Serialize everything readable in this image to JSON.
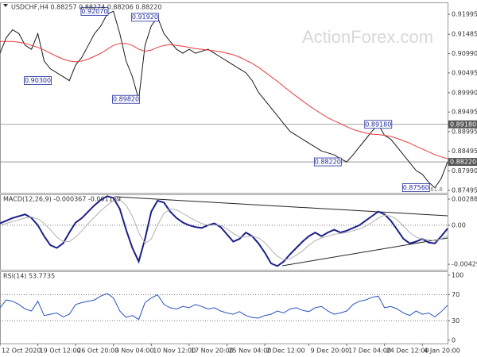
{
  "watermark": "ActionForex.com",
  "chart_data": [
    {
      "type": "line",
      "title": "USDCHF,H4  0.88257 0.88274 0.88206 0.88220",
      "xlim": [
        0,
        71
      ],
      "ylim": [
        0.8743,
        0.923
      ],
      "yticks": [
        0.91995,
        0.91485,
        {
          "value": 0.9099,
          "label": "0.90990"
        },
        0.90495,
        {
          "value": 0.8999,
          "label": "0.89990"
        },
        0.89495,
        0.88995,
        0.88495,
        {
          "value": 0.8799,
          "label": "0.87990"
        },
        0.87495
      ],
      "axis_highlights": [
        {
          "value": 0.8918,
          "label": "0.89180"
        },
        {
          "value": 0.8822,
          "label": "0.88220"
        }
      ],
      "fib_label": "61.8",
      "annotations": [
        {
          "x": 15,
          "value": 0.9207,
          "label": "0.92070"
        },
        {
          "x": 23,
          "value": 0.9192,
          "label": "0.91920"
        },
        {
          "x": 6,
          "value": 0.903,
          "label": "0.90300"
        },
        {
          "x": 20,
          "value": 0.8982,
          "label": "0.89820"
        },
        {
          "x": 60,
          "value": 0.8918,
          "label": "0.89180"
        },
        {
          "x": 52,
          "value": 0.8822,
          "label": "0.88220"
        },
        {
          "x": 66,
          "value": 0.8756,
          "label": "0.87560"
        }
      ],
      "series": [
        {
          "color": "#1a1a1a",
          "values": [
            0.91,
            0.914,
            0.916,
            0.915,
            0.912,
            0.911,
            0.915,
            0.908,
            0.906,
            0.905,
            0.904,
            0.903,
            0.907,
            0.909,
            0.912,
            0.915,
            0.917,
            0.92,
            0.9207,
            0.915,
            0.908,
            0.904,
            0.8982,
            0.912,
            0.917,
            0.9192,
            0.915,
            0.913,
            0.911,
            0.91,
            0.911,
            0.91,
            0.9105,
            0.911,
            0.91,
            0.909,
            0.908,
            0.907,
            0.906,
            0.905,
            0.903,
            0.9,
            0.898,
            0.896,
            0.894,
            0.892,
            0.89,
            0.889,
            0.888,
            0.887,
            0.886,
            0.885,
            0.8845,
            0.884,
            0.883,
            0.8822,
            0.884,
            0.886,
            0.888,
            0.89,
            0.8918,
            0.889,
            0.888,
            0.886,
            0.884,
            0.882,
            0.88,
            0.879,
            0.877,
            0.8756,
            0.878,
            0.8822
          ]
        },
        {
          "color": "#e8393a",
          "values": [
            0.913,
            0.913,
            0.913,
            0.9128,
            0.9125,
            0.912,
            0.9115,
            0.9108,
            0.91,
            0.9092,
            0.9085,
            0.908,
            0.9078,
            0.908,
            0.9085,
            0.9092,
            0.91,
            0.911,
            0.912,
            0.9125,
            0.9125,
            0.912,
            0.911,
            0.9105,
            0.9108,
            0.9115,
            0.912,
            0.9122,
            0.912,
            0.9118,
            0.9115,
            0.9112,
            0.911,
            0.9108,
            0.9106,
            0.9104,
            0.91,
            0.9096,
            0.909,
            0.9082,
            0.9074,
            0.9064,
            0.9052,
            0.904,
            0.9028,
            0.9015,
            0.9002,
            0.899,
            0.8978,
            0.8966,
            0.8955,
            0.8945,
            0.8935,
            0.8927,
            0.892,
            0.8912,
            0.8905,
            0.89,
            0.8896,
            0.8893,
            0.8892,
            0.889,
            0.8887,
            0.8882,
            0.8876,
            0.887,
            0.8862,
            0.8855,
            0.8848,
            0.884,
            0.8835,
            0.883
          ]
        }
      ]
    },
    {
      "type": "line",
      "title": "MACD(12,26,9) -0.000367 -0.001169",
      "xlim": [
        0,
        71
      ],
      "ylim": [
        -0.0049,
        0.0034
      ],
      "yticks": [
        0.00288,
        {
          "value": 0,
          "label": "0.00"
        },
        -0.004298
      ],
      "levels": [
        0
      ],
      "series": [
        {
          "color": "#1c1f8a",
          "width": 2,
          "values": [
            0.0002,
            0.0005,
            0.0008,
            0.001,
            0.0012,
            0.0008,
            0.0,
            -0.0012,
            -0.0022,
            -0.0025,
            -0.002,
            -0.0008,
            0.0003,
            0.0008,
            0.0015,
            0.0022,
            0.0028,
            0.0032,
            0.003,
            0.0018,
            -0.0005,
            -0.0025,
            -0.004,
            -0.0015,
            0.0015,
            0.0027,
            0.0025,
            0.0015,
            0.0008,
            0.0003,
            0.0,
            -0.0002,
            -0.0003,
            0.0,
            0.0002,
            -0.0002,
            -0.001,
            -0.0018,
            -0.0015,
            -0.0008,
            -0.0012,
            -0.002,
            -0.003,
            -0.0042,
            -0.0045,
            -0.004,
            -0.0032,
            -0.0025,
            -0.0018,
            -0.0012,
            -0.0008,
            -0.0012,
            -0.0008,
            -0.0005,
            -0.0008,
            -0.0006,
            -0.0003,
            0.0,
            0.0005,
            0.001,
            0.0015,
            0.0012,
            0.0005,
            -0.0005,
            -0.0015,
            -0.002,
            -0.0018,
            -0.0015,
            -0.0019,
            -0.002,
            -0.0012,
            -0.000367
          ]
        },
        {
          "color": "#b0b0b0",
          "width": 1,
          "values": [
            0.0,
            0.0002,
            0.0004,
            0.0006,
            0.0008,
            0.0009,
            0.0007,
            0.0002,
            -0.0005,
            -0.0013,
            -0.0018,
            -0.0018,
            -0.0013,
            -0.0006,
            0.0002,
            0.0009,
            0.0016,
            0.0022,
            0.0027,
            0.0028,
            0.0022,
            0.001,
            -0.0008,
            -0.002,
            -0.0015,
            0.0,
            0.0013,
            0.0018,
            0.0017,
            0.0013,
            0.0009,
            0.0005,
            0.0002,
            0.0,
            0.0,
            0.0,
            -0.0004,
            -0.0009,
            -0.0013,
            -0.0013,
            -0.0012,
            -0.0014,
            -0.0019,
            -0.0027,
            -0.0034,
            -0.0038,
            -0.0037,
            -0.0033,
            -0.0028,
            -0.0022,
            -0.0017,
            -0.0014,
            -0.0012,
            -0.001,
            -0.0009,
            -0.0008,
            -0.0006,
            -0.0004,
            -0.0001,
            0.0003,
            0.0008,
            0.0011,
            0.001,
            0.0006,
            -0.0001,
            -0.0008,
            -0.0013,
            -0.0015,
            -0.0016,
            -0.0017,
            -0.0015,
            -0.001169
          ]
        }
      ]
    },
    {
      "type": "line",
      "title": "RSI(14) 53.7735",
      "xlim": [
        0,
        71
      ],
      "ylim": [
        -5,
        106
      ],
      "yticks": [
        100,
        70,
        30,
        0
      ],
      "levels": [
        70,
        30
      ],
      "xticks": [
        {
          "value": 0,
          "label": "12 Oct 2020"
        },
        {
          "value": 6,
          "label": "19 Oct 12:00"
        },
        {
          "value": 12,
          "label": "26 Oct 20:00"
        },
        {
          "value": 18,
          "label": "3 Nov 04:00"
        },
        {
          "value": 24,
          "label": "10 Nov 12:00"
        },
        {
          "value": 30,
          "label": "17 Nov 20:00"
        },
        {
          "value": 36,
          "label": "25 Nov 04:00"
        },
        {
          "value": 42,
          "label": "2 Dec 12:00"
        },
        {
          "value": 49,
          "label": "9 Dec 20:00"
        },
        {
          "value": 55,
          "label": "17 Dec 04:00"
        },
        {
          "value": 61,
          "label": "24 Dec 12:00"
        },
        {
          "value": 67,
          "label": "4 Jan 20:00"
        }
      ],
      "series": [
        {
          "color": "#2a52be",
          "width": 1,
          "values": [
            50,
            62,
            60,
            55,
            48,
            45,
            60,
            38,
            40,
            42,
            36,
            40,
            55,
            58,
            60,
            62,
            68,
            72,
            65,
            45,
            35,
            38,
            32,
            58,
            65,
            70,
            55,
            50,
            48,
            52,
            50,
            55,
            52,
            48,
            50,
            45,
            42,
            40,
            44,
            38,
            35,
            34,
            38,
            40,
            45,
            42,
            48,
            50,
            46,
            44,
            50,
            52,
            45,
            40,
            42,
            45,
            55,
            60,
            62,
            66,
            68,
            50,
            52,
            48,
            42,
            38,
            45,
            40,
            42,
            36,
            44,
            53.7735
          ]
        }
      ]
    }
  ]
}
